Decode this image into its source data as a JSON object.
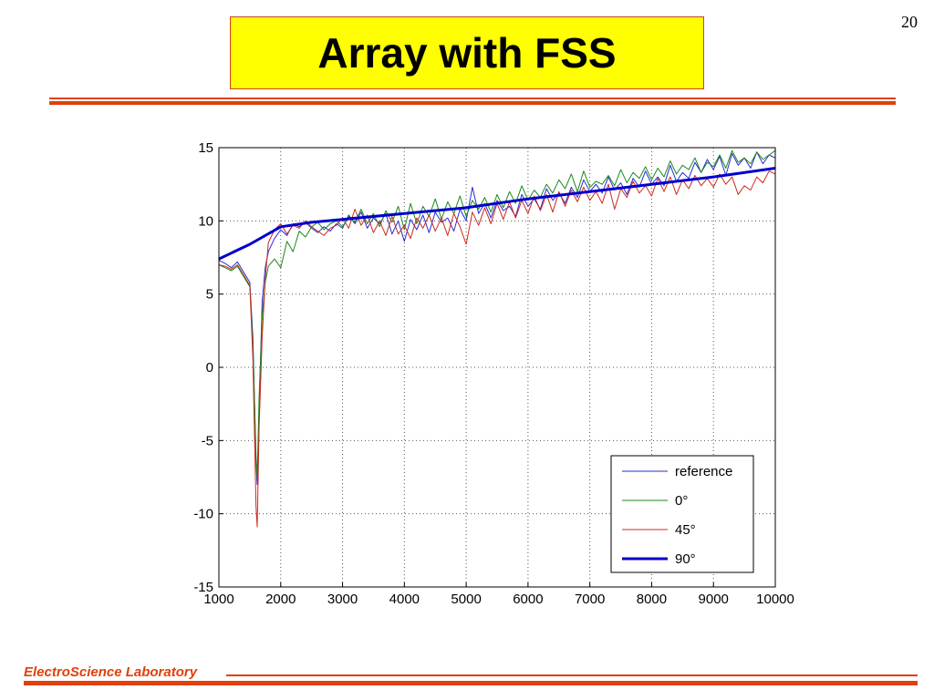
{
  "slide": {
    "page_number": "20",
    "title": "Array with FSS",
    "footer": "ElectroScience Laboratory",
    "accent_color": "#e0400a",
    "title_bg_color": "#ffff00"
  },
  "chart_data": {
    "type": "line",
    "title": "",
    "xlabel": "",
    "ylabel": "",
    "xlim": [
      1000,
      10000
    ],
    "ylim": [
      -15,
      15
    ],
    "x_ticks": [
      1000,
      2000,
      3000,
      4000,
      5000,
      6000,
      7000,
      8000,
      9000,
      10000
    ],
    "y_ticks": [
      15,
      10,
      5,
      0,
      -5,
      -10,
      -15
    ],
    "grid": true,
    "legend_position": "bottom-right",
    "series": [
      {
        "name": "reference",
        "color": "#2b2bd6",
        "width": 1,
        "x": [
          1000,
          1100,
          1200,
          1300,
          1400,
          1500,
          1550,
          1600,
          1620,
          1650,
          1700,
          1750,
          1800,
          1900,
          2000,
          2100,
          2200,
          2300,
          2400,
          2500,
          2600,
          2700,
          2800,
          2900,
          3000,
          3100,
          3200,
          3300,
          3400,
          3500,
          3600,
          3700,
          3800,
          3900,
          4000,
          4100,
          4200,
          4300,
          4400,
          4500,
          4600,
          4700,
          4800,
          4900,
          5000,
          5100,
          5200,
          5300,
          5400,
          5500,
          5600,
          5700,
          5800,
          5900,
          6000,
          6100,
          6200,
          6300,
          6400,
          6500,
          6600,
          6700,
          6800,
          6900,
          7000,
          7100,
          7200,
          7300,
          7400,
          7500,
          7600,
          7700,
          7800,
          7900,
          8000,
          8100,
          8200,
          8300,
          8400,
          8500,
          8600,
          8700,
          8800,
          8900,
          9000,
          9100,
          9200,
          9300,
          9400,
          9500,
          9600,
          9700,
          9800,
          9900,
          10000
        ],
        "y": [
          7.3,
          7.1,
          6.8,
          7.2,
          6.5,
          5.8,
          2.0,
          -6.5,
          -8.0,
          -3.0,
          4.5,
          6.8,
          7.9,
          8.8,
          9.4,
          9.0,
          9.8,
          9.6,
          9.9,
          9.5,
          9.2,
          9.6,
          9.3,
          9.8,
          9.5,
          10.4,
          9.8,
          10.6,
          9.5,
          10.2,
          9.8,
          10.5,
          9.1,
          10.0,
          8.6,
          10.1,
          9.4,
          10.4,
          9.2,
          10.6,
          9.9,
          10.2,
          9.3,
          10.8,
          10.0,
          12.3,
          10.5,
          11.2,
          10.2,
          11.4,
          10.7,
          11.0,
          10.3,
          11.8,
          11.0,
          11.5,
          10.8,
          12.2,
          11.4,
          11.9,
          11.2,
          12.3,
          11.6,
          12.8,
          12.0,
          12.5,
          11.9,
          13.0,
          12.1,
          12.6,
          11.8,
          12.9,
          12.3,
          13.4,
          12.5,
          13.0,
          12.4,
          13.8,
          12.7,
          13.3,
          12.9,
          14.0,
          13.3,
          14.2,
          13.5,
          14.4,
          13.1,
          14.6,
          13.8,
          14.3,
          13.6,
          14.7,
          13.9,
          14.5,
          14.3
        ]
      },
      {
        "name": "0°",
        "color": "#1a8a1a",
        "width": 1,
        "x": [
          1000,
          1100,
          1200,
          1300,
          1400,
          1500,
          1550,
          1600,
          1620,
          1650,
          1700,
          1750,
          1800,
          1900,
          2000,
          2100,
          2200,
          2300,
          2400,
          2500,
          2600,
          2700,
          2800,
          2900,
          3000,
          3100,
          3200,
          3300,
          3400,
          3500,
          3600,
          3700,
          3800,
          3900,
          4000,
          4100,
          4200,
          4300,
          4400,
          4500,
          4600,
          4700,
          4800,
          4900,
          5000,
          5100,
          5200,
          5300,
          5400,
          5500,
          5600,
          5700,
          5800,
          5900,
          6000,
          6100,
          6200,
          6300,
          6400,
          6500,
          6600,
          6700,
          6800,
          6900,
          7000,
          7100,
          7200,
          7300,
          7400,
          7500,
          7600,
          7700,
          7800,
          7900,
          8000,
          8100,
          8200,
          8300,
          8400,
          8500,
          8600,
          8700,
          8800,
          8900,
          9000,
          9100,
          9200,
          9300,
          9400,
          9500,
          9600,
          9700,
          9800,
          9900,
          10000
        ],
        "y": [
          7.0,
          6.8,
          6.6,
          6.9,
          6.2,
          5.5,
          1.5,
          -6.0,
          -7.5,
          -2.0,
          3.5,
          5.8,
          6.9,
          7.4,
          6.8,
          8.6,
          7.9,
          9.3,
          8.9,
          9.6,
          9.9,
          9.4,
          9.8,
          10.0,
          9.6,
          10.3,
          9.9,
          10.8,
          9.8,
          10.5,
          9.6,
          10.7,
          9.9,
          11.0,
          9.4,
          11.2,
          9.8,
          11.0,
          10.3,
          11.5,
          10.1,
          11.3,
          10.5,
          11.7,
          10.3,
          11.4,
          10.8,
          11.6,
          10.6,
          11.8,
          10.9,
          12.0,
          11.2,
          12.4,
          11.4,
          12.1,
          11.6,
          12.5,
          11.9,
          12.8,
          12.2,
          13.2,
          12.0,
          13.4,
          12.3,
          12.7,
          12.5,
          13.1,
          12.4,
          13.5,
          12.6,
          13.3,
          12.9,
          13.7,
          12.8,
          13.6,
          13.0,
          14.1,
          13.2,
          13.8,
          13.5,
          14.3,
          13.3,
          14.0,
          13.7,
          14.5,
          13.6,
          14.8,
          14.0,
          14.3,
          13.9,
          14.7,
          14.2,
          14.5,
          14.8
        ]
      },
      {
        "name": "45°",
        "color": "#cc2a1a",
        "width": 1,
        "x": [
          1000,
          1100,
          1200,
          1300,
          1400,
          1500,
          1550,
          1600,
          1620,
          1650,
          1700,
          1750,
          1800,
          1900,
          2000,
          2100,
          2200,
          2300,
          2400,
          2500,
          2600,
          2700,
          2800,
          2900,
          3000,
          3100,
          3200,
          3300,
          3400,
          3500,
          3600,
          3700,
          3800,
          3900,
          4000,
          4100,
          4200,
          4300,
          4400,
          4500,
          4600,
          4700,
          4800,
          4900,
          5000,
          5100,
          5200,
          5300,
          5400,
          5500,
          5600,
          5700,
          5800,
          5900,
          6000,
          6100,
          6200,
          6300,
          6400,
          6500,
          6600,
          6700,
          6800,
          6900,
          7000,
          7100,
          7200,
          7300,
          7400,
          7500,
          7600,
          7700,
          7800,
          7900,
          8000,
          8100,
          8200,
          8300,
          8400,
          8500,
          8600,
          8700,
          8800,
          8900,
          9000,
          9100,
          9200,
          9300,
          9400,
          9500,
          9600,
          9700,
          9800,
          9900,
          10000
        ],
        "y": [
          7.0,
          6.9,
          6.7,
          7.0,
          6.3,
          5.6,
          0.5,
          -9.5,
          -10.9,
          -4.0,
          2.0,
          6.0,
          8.5,
          9.4,
          9.8,
          9.1,
          9.7,
          9.5,
          10.0,
          9.6,
          9.3,
          9.0,
          9.5,
          9.7,
          10.2,
          9.5,
          10.8,
          9.7,
          10.4,
          9.2,
          10.0,
          9.0,
          10.3,
          9.1,
          9.7,
          8.8,
          10.2,
          9.5,
          10.4,
          9.3,
          10.2,
          9.0,
          10.5,
          9.6,
          8.4,
          10.6,
          9.7,
          10.9,
          9.8,
          11.2,
          10.1,
          11.3,
          10.2,
          11.4,
          10.5,
          11.7,
          10.7,
          11.8,
          10.6,
          12.0,
          11.0,
          12.1,
          11.3,
          12.3,
          11.4,
          12.0,
          11.2,
          12.5,
          10.8,
          12.2,
          11.6,
          12.7,
          11.9,
          12.4,
          11.7,
          12.9,
          12.0,
          13.0,
          11.8,
          12.8,
          12.2,
          13.1,
          12.4,
          12.9,
          12.3,
          13.2,
          12.5,
          13.0,
          11.8,
          12.4,
          12.1,
          13.0,
          12.6,
          13.4,
          13.2
        ]
      },
      {
        "name": "90°",
        "color": "#0000cc",
        "width": 3,
        "x": [
          1000,
          1500,
          2000,
          2500,
          3000,
          4000,
          5000,
          6000,
          7000,
          8000,
          9000,
          10000
        ],
        "y": [
          7.4,
          8.4,
          9.6,
          9.9,
          10.1,
          10.5,
          10.9,
          11.5,
          12.0,
          12.5,
          13.0,
          13.6
        ]
      }
    ]
  }
}
